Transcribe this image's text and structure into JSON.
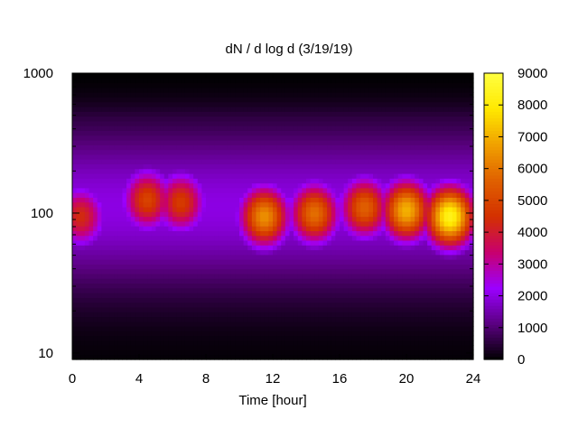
{
  "chart_data": {
    "type": "heatmap",
    "title": "dN / d log d (3/19/19)",
    "xlabel": "Time [hour]",
    "ylabel": "",
    "x_range": [
      0,
      24
    ],
    "x_ticks": [
      "0",
      "4",
      "8",
      "12",
      "16",
      "20",
      "24"
    ],
    "y_scale": "log",
    "y_range": [
      9,
      1000
    ],
    "y_ticks": [
      "10",
      "100",
      "1000"
    ],
    "colorbar": {
      "range": [
        0,
        9000
      ],
      "ticks": [
        "0",
        "1000",
        "2000",
        "3000",
        "4000",
        "5000",
        "6000",
        "7000",
        "8000",
        "9000"
      ],
      "palette": [
        "#000000",
        "#5a0080",
        "#9b00ff",
        "#c8006e",
        "#d33000",
        "#e06000",
        "#f0a000",
        "#ffe800",
        "#ffff40"
      ]
    },
    "grid": false,
    "peaks": [
      {
        "time": 0.5,
        "diameter": 95,
        "value": 4400
      },
      {
        "time": 4.5,
        "diameter": 125,
        "value": 5000
      },
      {
        "time": 6.5,
        "diameter": 120,
        "value": 4800
      },
      {
        "time": 11.5,
        "diameter": 95,
        "value": 6600
      },
      {
        "time": 14.5,
        "diameter": 100,
        "value": 6000
      },
      {
        "time": 17.5,
        "diameter": 110,
        "value": 5700
      },
      {
        "time": 20.0,
        "diameter": 105,
        "value": 7200
      },
      {
        "time": 22.6,
        "diameter": 95,
        "value": 8600
      }
    ],
    "background": {
      "diameter_band": [
        35,
        350
      ],
      "value": 2000
    }
  }
}
